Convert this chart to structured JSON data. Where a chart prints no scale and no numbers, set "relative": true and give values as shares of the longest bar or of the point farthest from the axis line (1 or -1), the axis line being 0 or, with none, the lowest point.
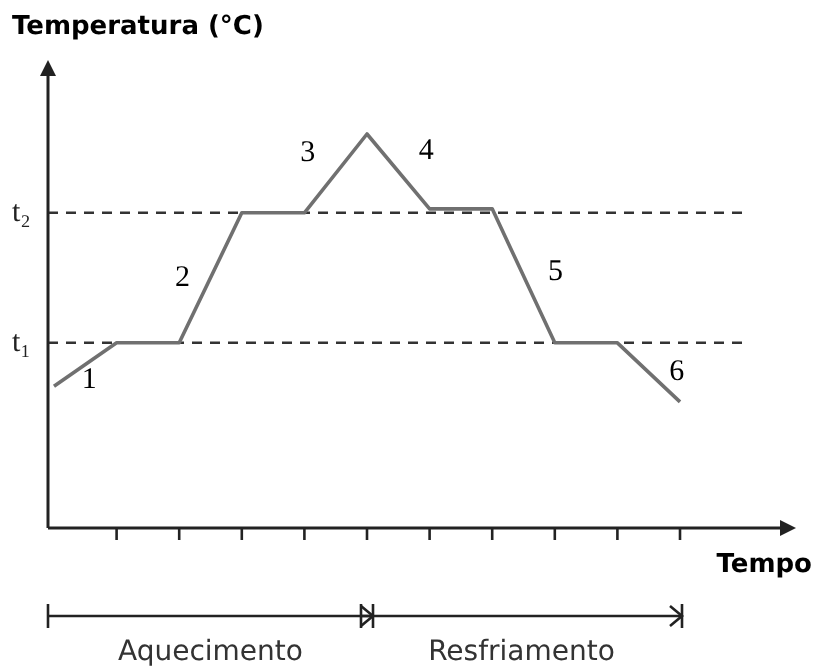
{
  "chart_data": {
    "type": "line",
    "relative": true,
    "xlabel": "Tempo",
    "ylabel": "Temperatura (°C)",
    "categories": [
      null,
      null,
      null,
      null,
      null,
      null,
      null,
      null,
      null,
      null,
      null
    ],
    "series": [
      {
        "color": "#707070",
        "values": [
          0.36,
          0.47,
          0.47,
          0.8,
          0.8,
          1,
          0.81,
          0.81,
          0.47,
          0.47,
          0.32
        ]
      }
    ],
    "ref_lines": [
      {
        "axis": "y",
        "value": 0.47,
        "label": "t₁",
        "line_style": "dashed",
        "color": "#333333"
      },
      {
        "axis": "y",
        "value": 0.8,
        "label": "t₂",
        "line_style": "dashed",
        "color": "#333333"
      }
    ],
    "annotations": [
      "1",
      "2",
      "3",
      "4",
      "5",
      "6",
      "Aquecimento",
      "Resfriamento"
    ],
    "grid": false,
    "marker": "none",
    "line_style": "solid"
  }
}
